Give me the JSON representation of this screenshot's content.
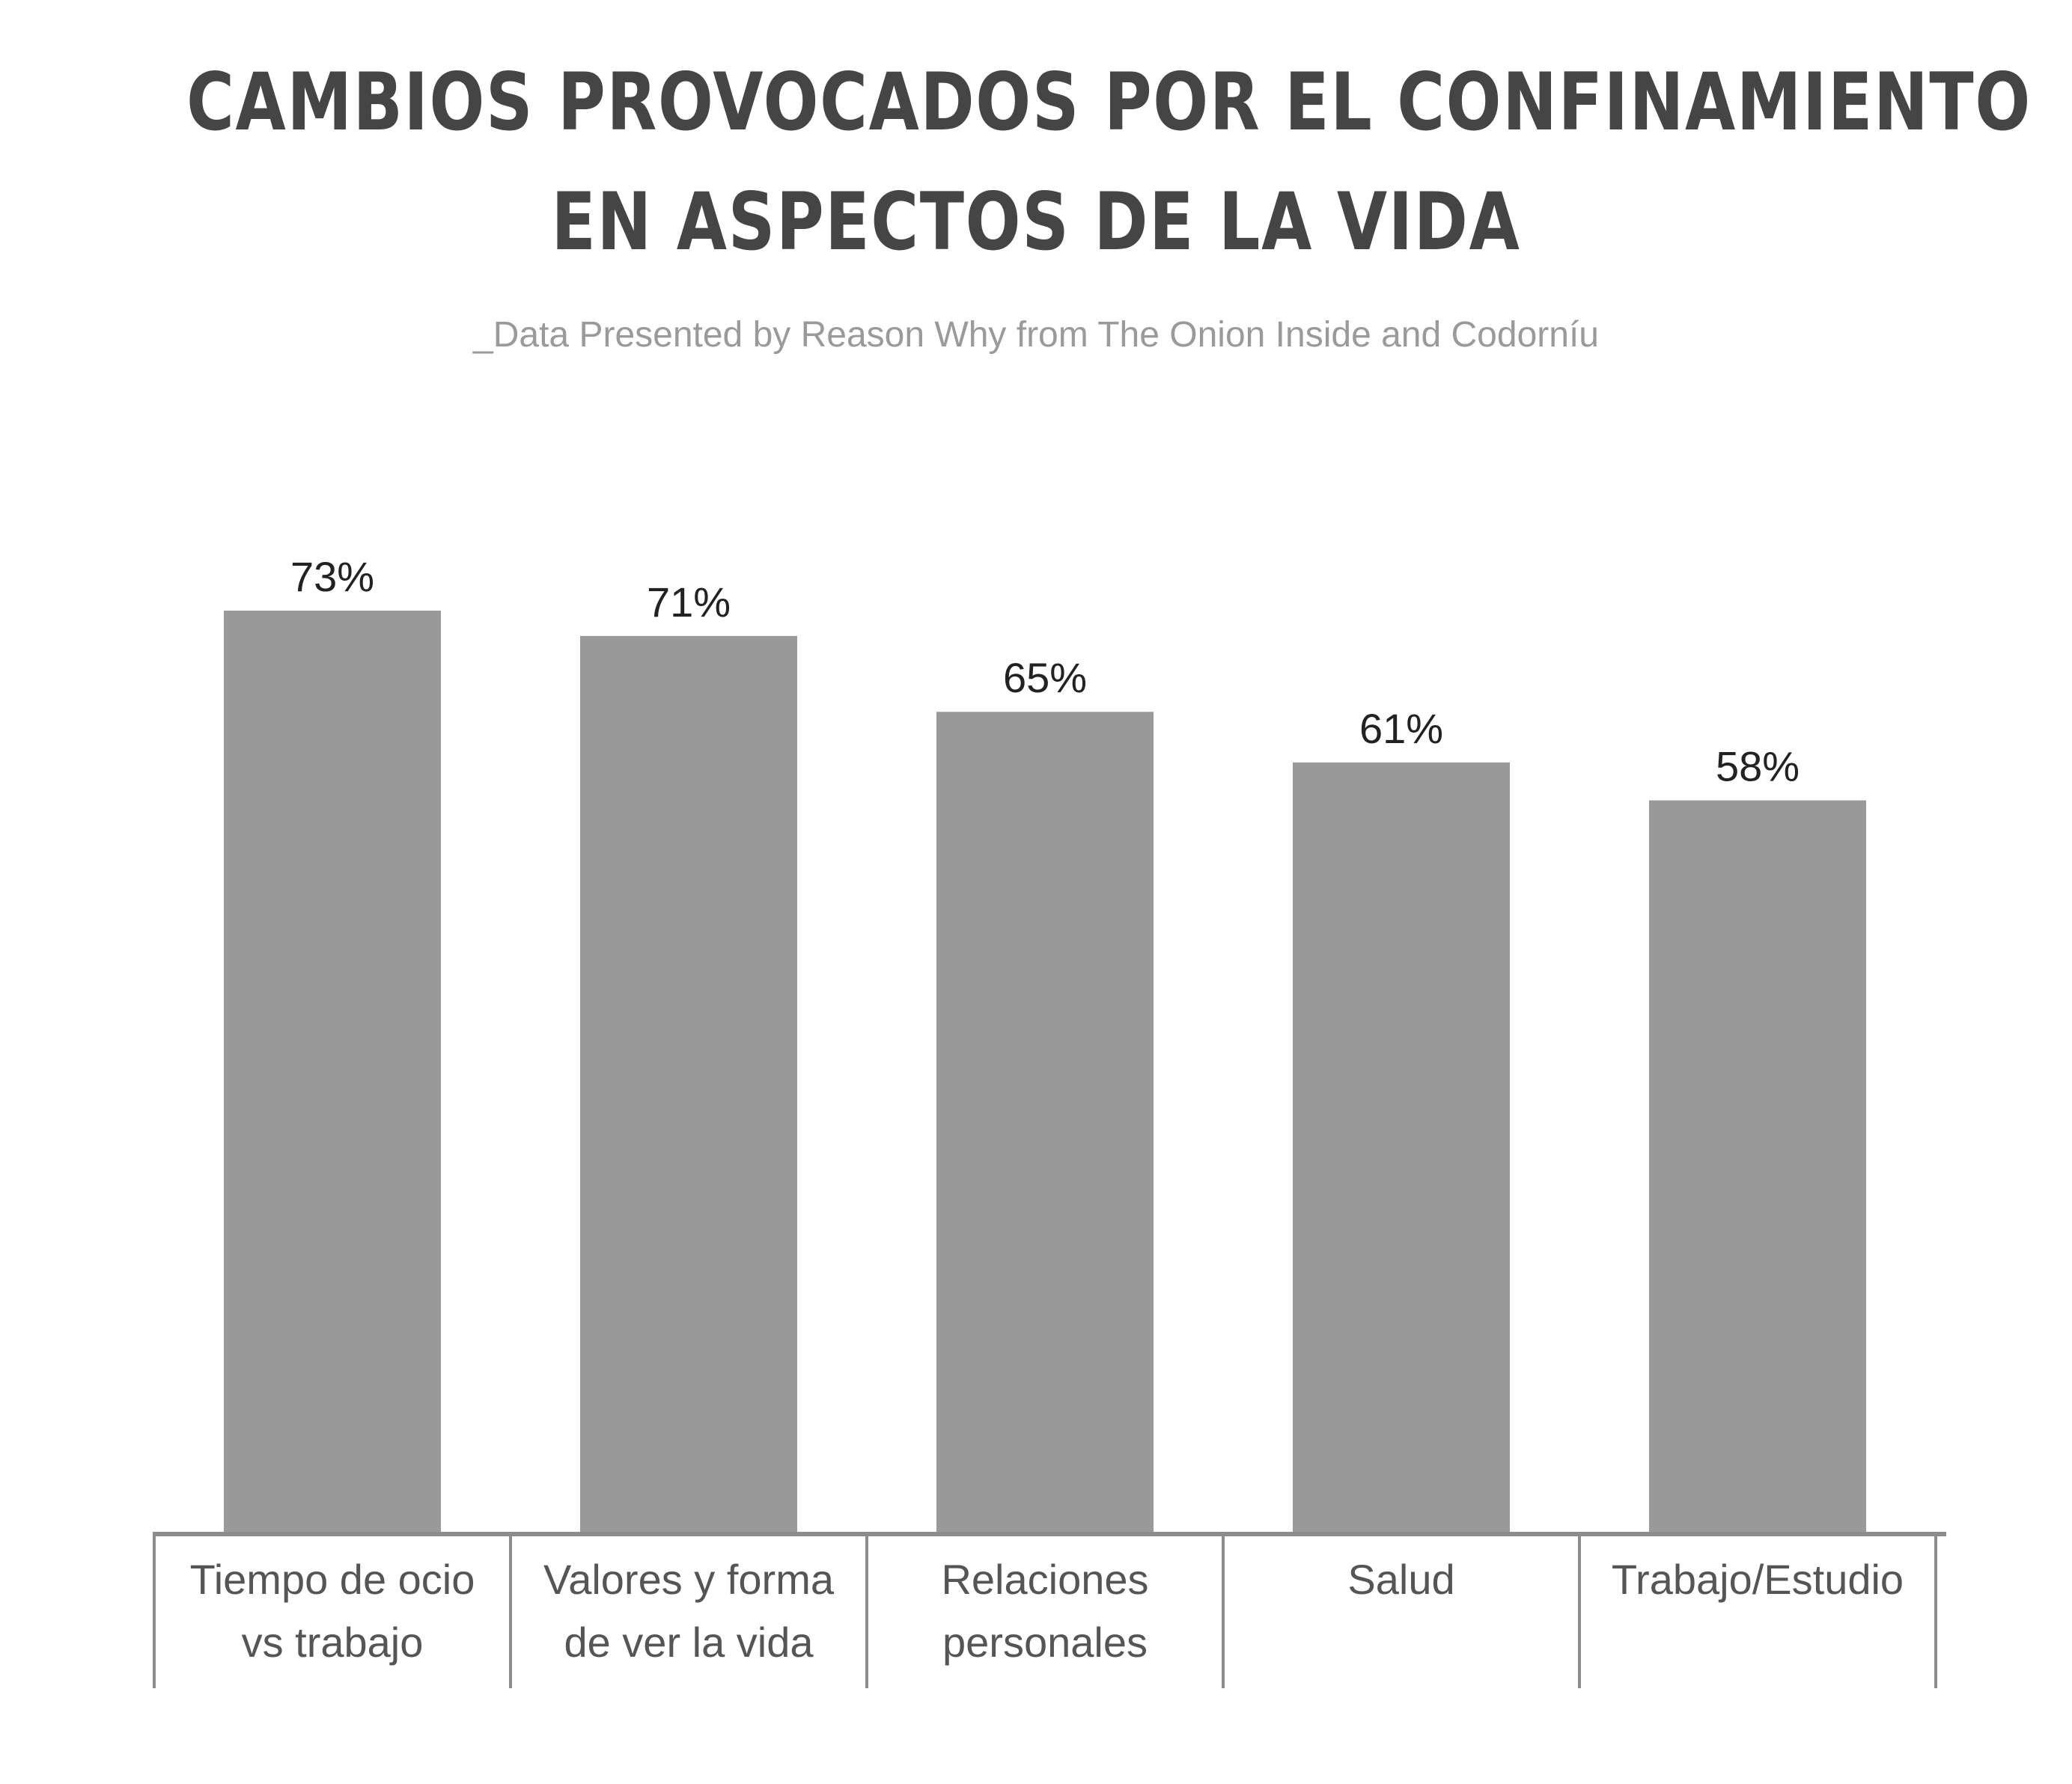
{
  "title_lines": [
    "CAMBIOS PROVOCADOS POR EL CONFINAMIENTO",
    "EN ASPECTOS DE LA VIDA"
  ],
  "subtitle": "_Data Presented by Reason Why from The Onion Inside and Codorníu",
  "colors": {
    "title": "#454545",
    "subtitle": "#9a9a9a",
    "bar": "#999999",
    "axis": "#8c8c8c",
    "value_label": "#222222",
    "category_label": "#555555"
  },
  "chart_data": {
    "type": "bar",
    "categories": [
      [
        "Tiempo de ocio",
        "vs trabajo"
      ],
      [
        "Valores y forma",
        "de ver la vida"
      ],
      [
        "Relaciones",
        "personales"
      ],
      [
        "Salud"
      ],
      [
        "Trabajo/Estudio"
      ]
    ],
    "values": [
      73,
      71,
      65,
      61,
      58
    ],
    "value_labels": [
      "73%",
      "71%",
      "65%",
      "61%",
      "58%"
    ],
    "title": "CAMBIOS PROVOCADOS POR EL CONFINAMIENTO EN ASPECTOS DE LA VIDA",
    "xlabel": "",
    "ylabel": "",
    "ylim": [
      0,
      100
    ],
    "grid": false,
    "legend": "none"
  }
}
